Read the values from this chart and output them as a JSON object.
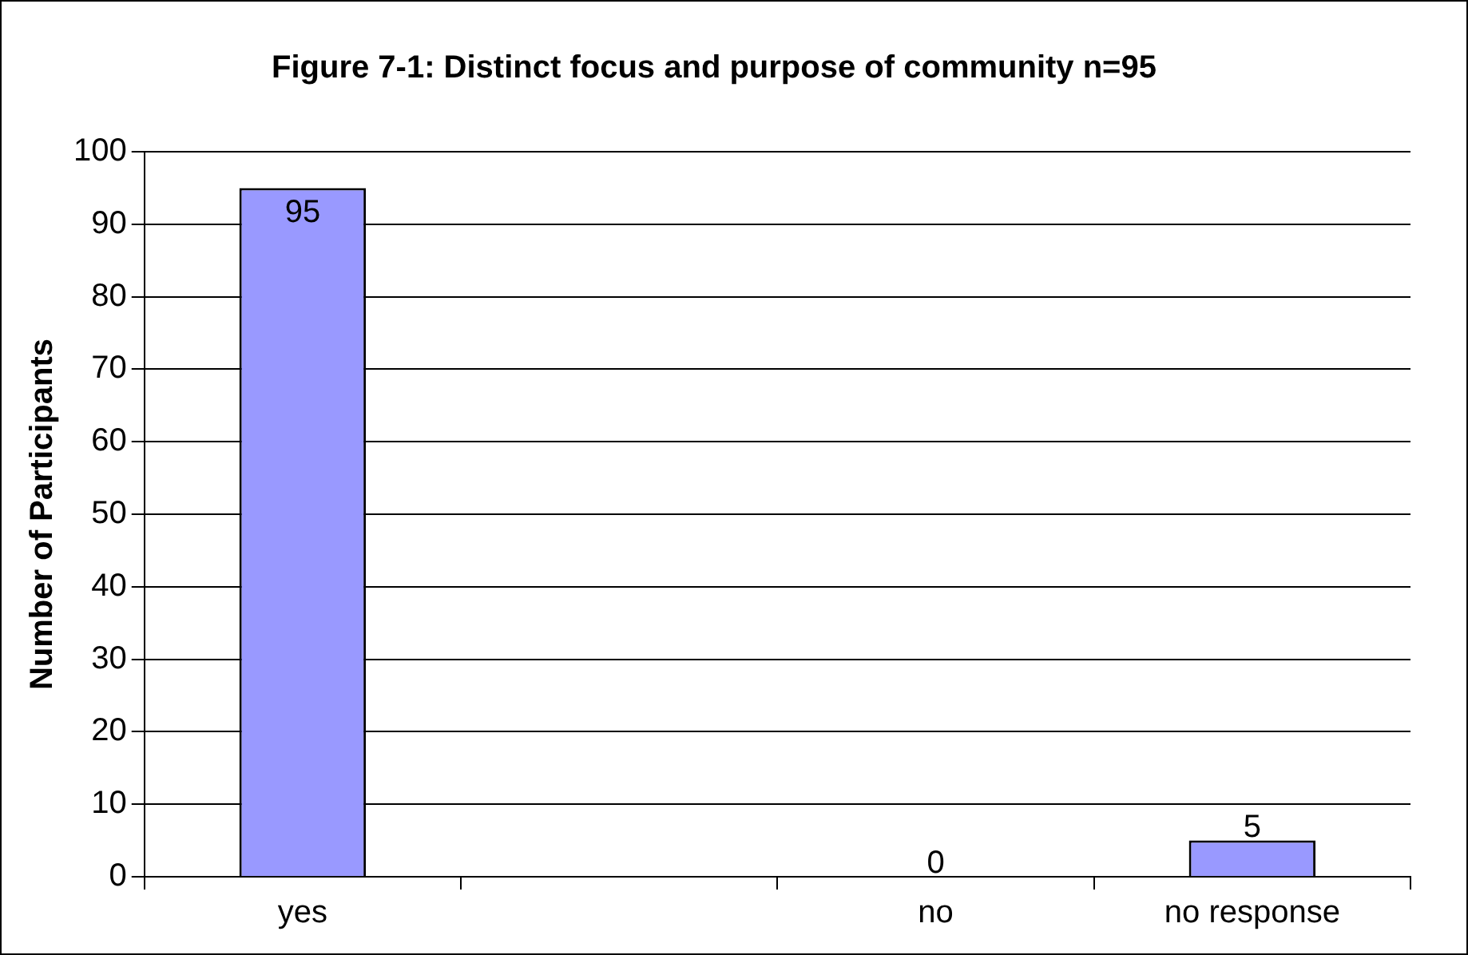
{
  "chart_data": {
    "type": "bar",
    "title": "Figure 7-1: Distinct focus and purpose of community n=95",
    "ylabel": "Number of Participants",
    "categories": [
      "yes",
      null,
      "no",
      "no response"
    ],
    "values": [
      95,
      null,
      0,
      5
    ],
    "color": "#9999ff",
    "ylim": [
      0,
      100
    ],
    "yticks": [
      0,
      10,
      20,
      30,
      40,
      50,
      60,
      70,
      80,
      90,
      100
    ],
    "grid": "y",
    "data_labels": true,
    "legend": false
  }
}
